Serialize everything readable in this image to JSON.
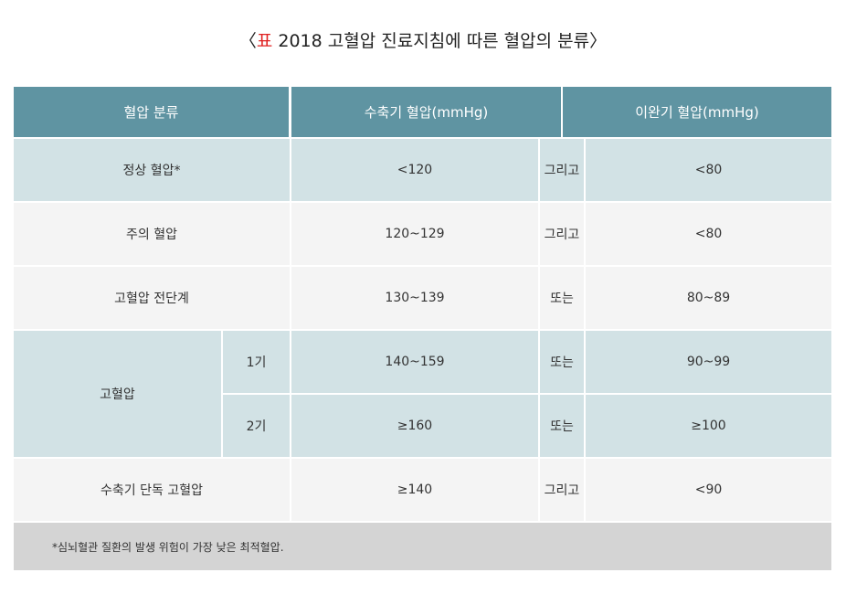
{
  "title": {
    "open": "〈",
    "label": "표",
    "text": "2018 고혈압 진료지침에 따른 혈압의 분류",
    "close": "〉"
  },
  "table": {
    "header": [
      "혈압 분류",
      "수축기 혈압(mmHg)",
      "이완기 혈압(mmHg)"
    ],
    "rows": [
      {
        "category": "정상 혈압*",
        "systolic": "<120",
        "conjunction": "그리고",
        "diastolic": "<80"
      },
      {
        "category": "주의 혈압",
        "systolic": "120~129",
        "conjunction": "그리고",
        "diastolic": "<80"
      },
      {
        "category": "고혈압 전단계",
        "systolic": "130~139",
        "conjunction": "또는",
        "diastolic": "80~89"
      },
      {
        "category": "고혈압",
        "stages": [
          {
            "stage": "1기",
            "systolic": "140~159",
            "conjunction": "또는",
            "diastolic": "90~99"
          },
          {
            "stage": "2기",
            "systolic": "≥160",
            "conjunction": "또는",
            "diastolic": "≥100"
          }
        ]
      },
      {
        "category": "수축기 단독 고혈압",
        "systolic": "≥140",
        "conjunction": "그리고",
        "diastolic": "<90"
      }
    ],
    "footnote": "*심뇌혈관 질환의 발생 위험이 가장 낮은 최적혈압."
  }
}
